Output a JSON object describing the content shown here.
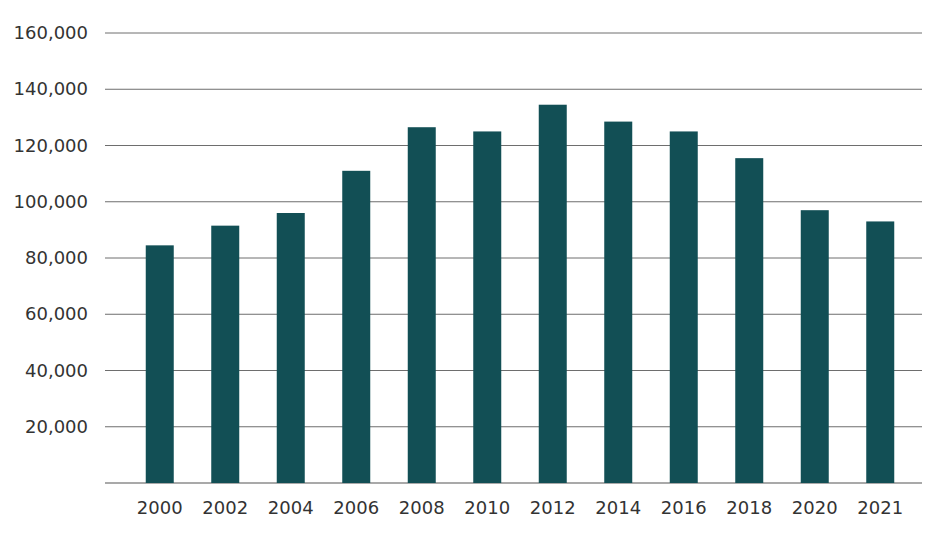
{
  "chart_data": {
    "type": "bar",
    "categories": [
      "2000",
      "2002",
      "2004",
      "2006",
      "2008",
      "2010",
      "2012",
      "2014",
      "2016",
      "2018",
      "2020",
      "2021"
    ],
    "values": [
      84500,
      91500,
      96000,
      111000,
      126500,
      125000,
      134500,
      128500,
      125000,
      115500,
      97000,
      93000
    ],
    "color": "#124f55",
    "ylim": [
      0,
      160000
    ],
    "yticks": [
      {
        "value": 20000,
        "label": "20,000"
      },
      {
        "value": 40000,
        "label": "40,000"
      },
      {
        "value": 60000,
        "label": "60,000"
      },
      {
        "value": 80000,
        "label": "80,000"
      },
      {
        "value": 100000,
        "label": "100,000"
      },
      {
        "value": 120000,
        "label": "120,000"
      },
      {
        "value": 140000,
        "label": "140,000"
      },
      {
        "value": 160000,
        "label": "160,000"
      }
    ],
    "grid": true
  }
}
